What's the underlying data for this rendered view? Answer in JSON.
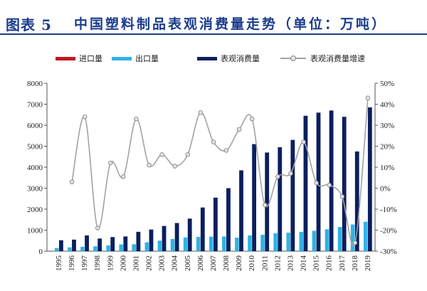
{
  "colors": {
    "title": "#1b3c8c",
    "import": "#c0161e",
    "export": "#2fb2e6",
    "consumption": "#0b1f5e",
    "growth_line": "#a3a3a3",
    "growth_marker_fill": "#e2e2e2",
    "growth_marker_stroke": "#8a8a8a",
    "axis": "#555555"
  },
  "chart_data": {
    "type": "bar",
    "figure_label": "图表 5",
    "title": "中国塑料制品表观消费量走势（单位：万吨）",
    "categories": [
      "1995",
      "1996",
      "1997",
      "1998",
      "1999",
      "2000",
      "2001",
      "2002",
      "2003",
      "2004",
      "2005",
      "2006",
      "2007",
      "2008",
      "2009",
      "2010",
      "2011",
      "2012",
      "2013",
      "2014",
      "2015",
      "2016",
      "2017",
      "2018",
      "2019"
    ],
    "series": [
      {
        "name": "进口量",
        "type": "bar",
        "color": "#c0161e",
        "values": [
          null,
          null,
          null,
          null,
          null,
          null,
          null,
          null,
          null,
          null,
          null,
          null,
          null,
          null,
          null,
          null,
          null,
          null,
          null,
          null,
          null,
          null,
          null,
          null,
          null
        ]
      },
      {
        "name": "出口量",
        "type": "bar",
        "color": "#2fb2e6",
        "values": [
          150,
          180,
          210,
          230,
          270,
          320,
          330,
          420,
          500,
          580,
          650,
          680,
          690,
          700,
          640,
          750,
          780,
          850,
          880,
          920,
          970,
          1040,
          1150,
          1270,
          1400
        ]
      },
      {
        "name": "表观消费量",
        "type": "bar",
        "color": "#0b1f5e",
        "values": [
          520,
          550,
          750,
          600,
          670,
          700,
          920,
          1030,
          1200,
          1340,
          1550,
          2080,
          2550,
          3000,
          3850,
          5100,
          4700,
          4950,
          5300,
          6450,
          6600,
          6700,
          6400,
          4750,
          6850
        ]
      },
      {
        "name": "表观消费量增速",
        "type": "line",
        "color": "#a3a3a3",
        "values": [
          null,
          3,
          34,
          -19,
          12,
          5.5,
          33,
          11,
          16,
          10.5,
          16,
          36,
          22,
          18,
          28,
          33,
          -8,
          5.5,
          7,
          22,
          2.5,
          1.5,
          -4,
          -26,
          43
        ]
      }
    ],
    "ylim": [
      0,
      8000
    ],
    "y_ticks": [
      0,
      1000,
      2000,
      3000,
      4000,
      5000,
      6000,
      7000,
      8000
    ],
    "y2lim": [
      -30,
      50
    ],
    "y2_ticks": [
      -30,
      -20,
      -10,
      0,
      10,
      20,
      30,
      40,
      50
    ],
    "y2_tick_suffix": "%",
    "legend_position": "top",
    "grid": false
  }
}
